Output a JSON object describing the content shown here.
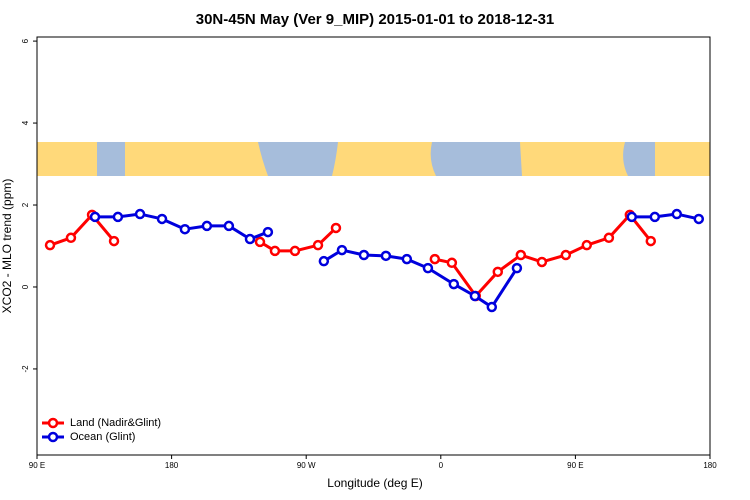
{
  "chart_data": {
    "type": "line",
    "title": "30N-45N May (Ver 9_MIP)   2015-01-01 to 2018-12-31",
    "x_label": "Longitude (deg E)",
    "y_label": "XCO2 - MLO trend (ppm)",
    "xlim": [
      90,
      540
    ],
    "ylim": [
      -4.1,
      6.1
    ],
    "xticks": [
      {
        "value": 90,
        "label": "90 E"
      },
      {
        "value": 180,
        "label": "180"
      },
      {
        "value": 270,
        "label": "90 W"
      },
      {
        "value": 360,
        "label": "0"
      },
      {
        "value": 450,
        "label": "90 E"
      },
      {
        "value": 540,
        "label": "180"
      }
    ],
    "yticks": [
      6,
      4,
      2,
      0,
      -2
    ],
    "legend": "bottom-left",
    "series": [
      {
        "name": "Land (Nadir&Glint)",
        "color": "#ff0000",
        "x": [
          98.7,
          112.7,
          126.8,
          141.5,
          null,
          239.1,
          249.1,
          262.5,
          277.9,
          289.9,
          null,
          356.0,
          367.4,
          383.4,
          398.1,
          413.5,
          427.6,
          443.6,
          457.6,
          472.4,
          486.4,
          500.4
        ],
        "values": [
          1.02,
          1.2,
          1.76,
          1.12,
          null,
          1.1,
          0.88,
          0.88,
          1.02,
          1.44,
          null,
          0.68,
          0.59,
          -0.22,
          0.37,
          0.78,
          0.61,
          0.78,
          1.02,
          1.2,
          1.76,
          1.12
        ]
      },
      {
        "name": "Ocean (Glint)",
        "color": "#0000dd",
        "x": [
          128.8,
          144.1,
          158.9,
          173.6,
          188.9,
          203.6,
          218.3,
          232.4,
          244.4,
          null,
          281.8,
          293.9,
          308.6,
          323.3,
          337.3,
          351.4,
          368.7,
          382.8,
          394.1,
          410.9,
          null,
          487.7,
          503.1,
          517.8,
          532.5
        ],
        "values": [
          1.71,
          1.71,
          1.78,
          1.66,
          1.41,
          1.49,
          1.49,
          1.17,
          1.34,
          null,
          0.63,
          0.9,
          0.78,
          0.76,
          0.68,
          0.46,
          0.07,
          -0.22,
          -0.49,
          0.46,
          null,
          1.71,
          1.71,
          1.78,
          1.66
        ]
      }
    ]
  }
}
